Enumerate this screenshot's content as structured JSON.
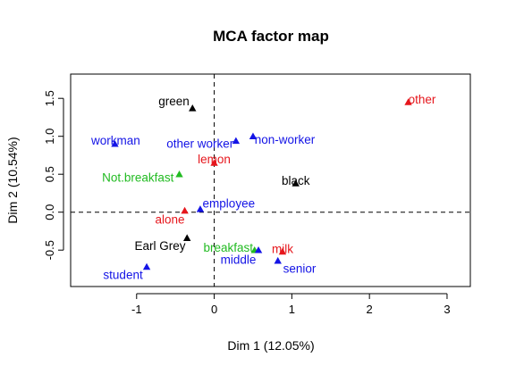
{
  "chart_data": {
    "type": "scatter",
    "title": "MCA factor map",
    "xlabel": "Dim 1 (12.05%)",
    "ylabel": "Dim 2 (10.54%)",
    "xlim": [
      -1.85,
      3.3
    ],
    "ylim": [
      -0.98,
      1.82
    ],
    "xticks": [
      -1,
      0,
      1,
      2,
      3
    ],
    "yticks": [
      -0.5,
      0.0,
      0.5,
      1.0,
      1.5
    ],
    "xtick_labels": [
      "-1",
      "0",
      "1",
      "2",
      "3"
    ],
    "ytick_labels": [
      "-0.5",
      "0.0",
      "0.5",
      "1.0",
      "1.5"
    ],
    "reference_lines": {
      "x": 0,
      "y": 0,
      "style": "dashed"
    },
    "grid": false,
    "legend": "none",
    "marker": "triangle",
    "colors": {
      "black": "#000000",
      "red": "#e6161c",
      "green": "#22bb22",
      "blue": "#1414e6"
    },
    "points": [
      {
        "label": "green",
        "x": -0.28,
        "y": 1.37,
        "color": "black",
        "anchor": "end",
        "lx": -0.32,
        "ly": 1.47
      },
      {
        "label": "other",
        "x": 2.5,
        "y": 1.45,
        "color": "red",
        "anchor": "start",
        "lx": 2.5,
        "ly": 1.49
      },
      {
        "label": "workman",
        "x": -1.28,
        "y": 0.9,
        "color": "blue",
        "anchor": "middle",
        "lx": -1.27,
        "ly": 0.95
      },
      {
        "label": "other worker",
        "x": 0.28,
        "y": 0.94,
        "color": "blue",
        "anchor": "end",
        "lx": 0.25,
        "ly": 0.91
      },
      {
        "label": "non-worker",
        "x": 0.5,
        "y": 1.0,
        "color": "blue",
        "anchor": "start",
        "lx": 0.52,
        "ly": 0.96
      },
      {
        "label": "lemon",
        "x": 0.0,
        "y": 0.65,
        "color": "red",
        "anchor": "middle",
        "lx": 0.0,
        "ly": 0.7
      },
      {
        "label": "Not.breakfast",
        "x": -0.45,
        "y": 0.5,
        "color": "green",
        "anchor": "end",
        "lx": -0.52,
        "ly": 0.46
      },
      {
        "label": "black",
        "x": 1.05,
        "y": 0.38,
        "color": "black",
        "anchor": "middle",
        "lx": 1.05,
        "ly": 0.42
      },
      {
        "label": "employee",
        "x": -0.18,
        "y": 0.04,
        "color": "blue",
        "anchor": "start",
        "lx": -0.15,
        "ly": 0.12
      },
      {
        "label": "alone",
        "x": -0.38,
        "y": 0.02,
        "color": "red",
        "anchor": "end",
        "lx": -0.38,
        "ly": -0.09
      },
      {
        "label": "Earl Grey",
        "x": -0.35,
        "y": -0.34,
        "color": "black",
        "anchor": "end",
        "lx": -0.37,
        "ly": -0.44
      },
      {
        "label": "breakfast",
        "x": 0.52,
        "y": -0.5,
        "color": "green",
        "anchor": "end",
        "lx": 0.5,
        "ly": -0.46
      },
      {
        "label": "milk",
        "x": 0.88,
        "y": -0.52,
        "color": "red",
        "anchor": "middle",
        "lx": 0.88,
        "ly": -0.48
      },
      {
        "label": "middle",
        "x": 0.57,
        "y": -0.5,
        "color": "blue",
        "anchor": "end",
        "lx": 0.54,
        "ly": -0.62
      },
      {
        "label": "student",
        "x": -0.87,
        "y": -0.72,
        "color": "blue",
        "anchor": "end",
        "lx": -0.92,
        "ly": -0.82
      },
      {
        "label": "senior",
        "x": 0.82,
        "y": -0.64,
        "color": "blue",
        "anchor": "middle",
        "lx": 1.1,
        "ly": -0.74
      }
    ]
  }
}
